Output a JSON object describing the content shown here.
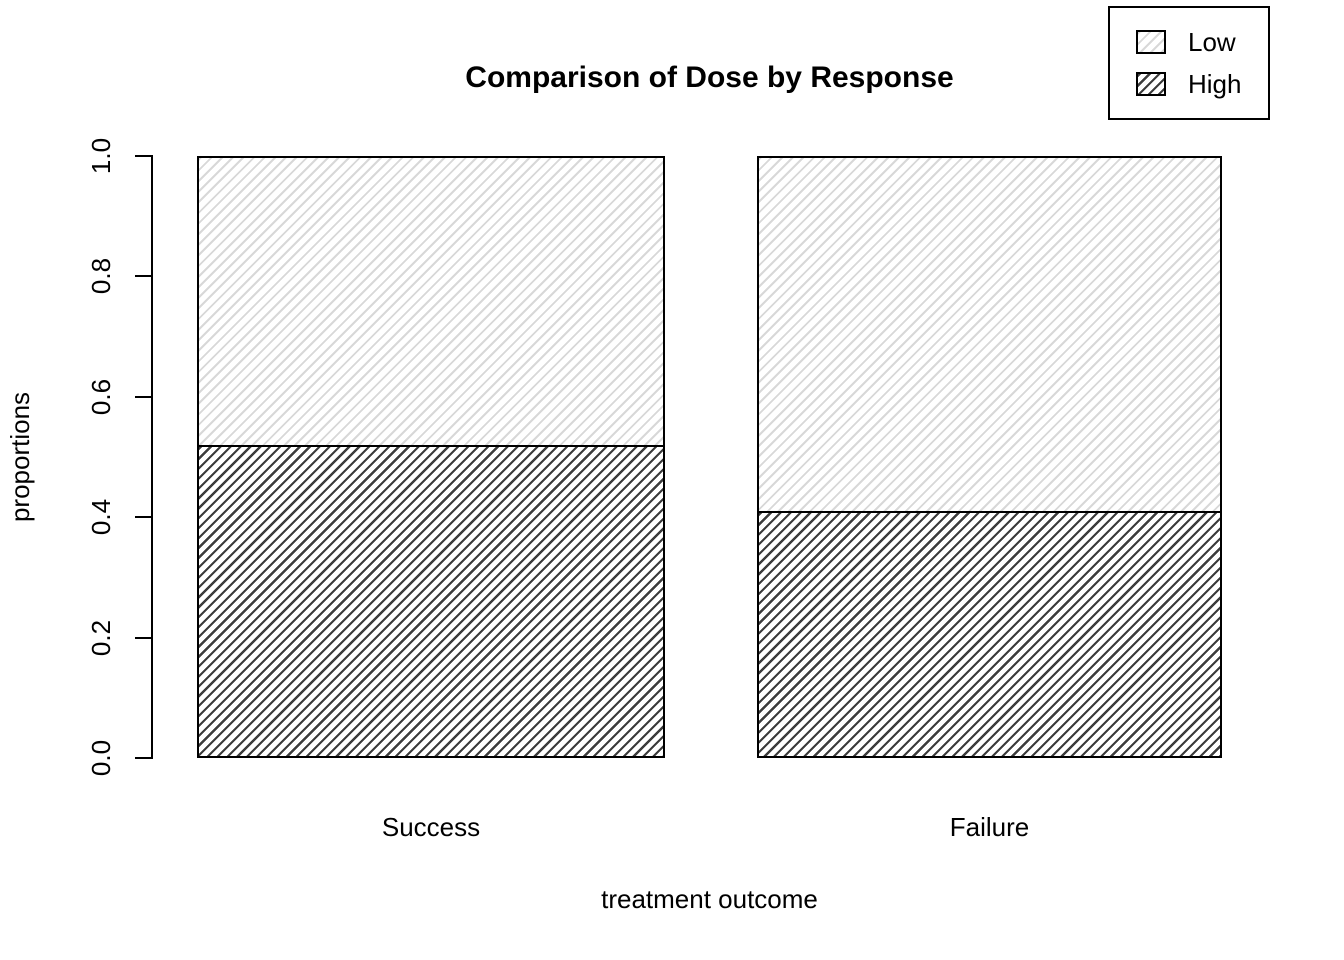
{
  "chart_data": {
    "type": "bar",
    "stacked": true,
    "title": "Comparison of Dose by Response",
    "xlabel": "treatment outcome",
    "ylabel": "proportions",
    "categories": [
      "Success",
      "Failure"
    ],
    "series": [
      {
        "name": "Low",
        "values": [
          0.48,
          0.59
        ],
        "hatch": "light",
        "hatch_color": "#d8d8d8"
      },
      {
        "name": "High",
        "values": [
          0.52,
          0.41
        ],
        "hatch": "dark",
        "hatch_color": "#3c3c3c"
      }
    ],
    "ylim": [
      0,
      1
    ],
    "yticks": [
      "0.0",
      "0.2",
      "0.4",
      "0.6",
      "0.8",
      "1.0"
    ],
    "legend_position": "top-right",
    "legend_labels": [
      "Low",
      "High"
    ],
    "axis_color": "#000000",
    "background": "#ffffff",
    "grid": false
  }
}
